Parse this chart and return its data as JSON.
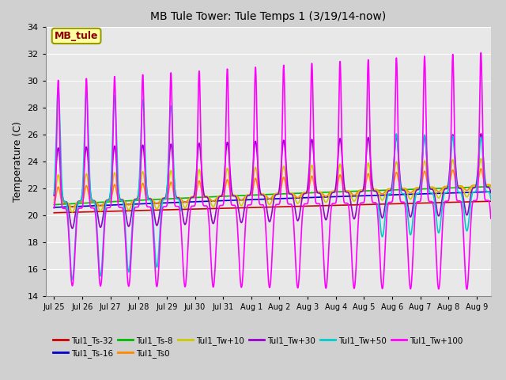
{
  "title": "MB Tule Tower: Tule Temps 1 (3/19/14-now)",
  "ylabel": "Temperature (C)",
  "ylim": [
    14,
    34
  ],
  "yticks": [
    14,
    16,
    18,
    20,
    22,
    24,
    26,
    28,
    30,
    32,
    34
  ],
  "fig_bg": "#d0d0d0",
  "axes_bg": "#e8e8e8",
  "annotation_text": "MB_tule",
  "annotation_text_color": "#8b0000",
  "annotation_bg": "#ffffa0",
  "annotation_edge": "#999900",
  "series": {
    "Tul1_Ts-32": {
      "color": "#cc0000",
      "lw": 1.2
    },
    "Tul1_Ts-16": {
      "color": "#0000cc",
      "lw": 1.2
    },
    "Tul1_Ts-8": {
      "color": "#00bb00",
      "lw": 1.2
    },
    "Tul1_Ts0": {
      "color": "#ff8800",
      "lw": 1.2
    },
    "Tul1_Tw+10": {
      "color": "#cccc00",
      "lw": 1.2
    },
    "Tul1_Tw+30": {
      "color": "#9900cc",
      "lw": 1.2
    },
    "Tul1_Tw+50": {
      "color": "#00cccc",
      "lw": 1.2
    },
    "Tul1_Tw+100": {
      "color": "#ff00ff",
      "lw": 1.2
    }
  },
  "tick_labels": [
    "Jul 25",
    "Jul 26",
    "Jul 27",
    "Jul 28",
    "Jul 29",
    "Jul 30",
    "Jul 31",
    "Aug 1",
    "Aug 2",
    "Aug 3",
    "Aug 4",
    "Aug 5",
    "Aug 6",
    "Aug 7",
    "Aug 8",
    "Aug 9"
  ],
  "tick_positions": [
    0,
    1,
    2,
    3,
    4,
    5,
    6,
    7,
    8,
    9,
    10,
    11,
    12,
    13,
    14,
    15
  ]
}
